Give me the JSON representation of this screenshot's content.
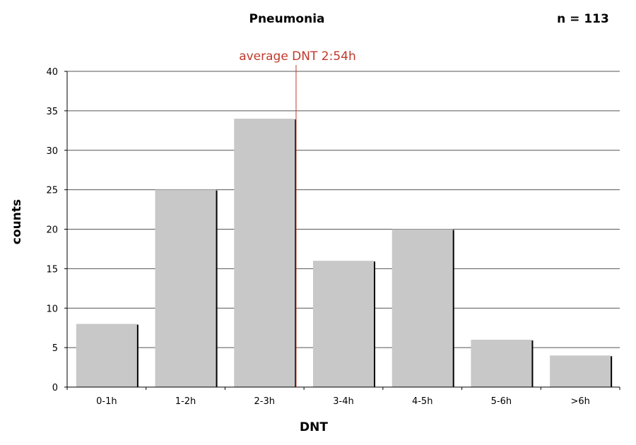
{
  "chart_data": {
    "type": "bar",
    "title": "Pneumonia",
    "sample_size_label": "n = 113",
    "xlabel": "DNT",
    "ylabel": "counts",
    "categories": [
      "0-1h",
      "1-2h",
      "2-3h",
      "3-4h",
      "4-5h",
      "5-6h",
      ">6h"
    ],
    "values": [
      8,
      25,
      34,
      16,
      20,
      6,
      4
    ],
    "ylim": [
      0,
      40
    ],
    "yticks": [
      0,
      5,
      10,
      15,
      20,
      25,
      30,
      35,
      40
    ],
    "grid": true,
    "bar_color": "#c8c8c8",
    "shadow_color": "#000000",
    "annotation": {
      "text": "average DNT 2:54h",
      "x_hours": 2.9,
      "color": "#c0392b"
    }
  }
}
